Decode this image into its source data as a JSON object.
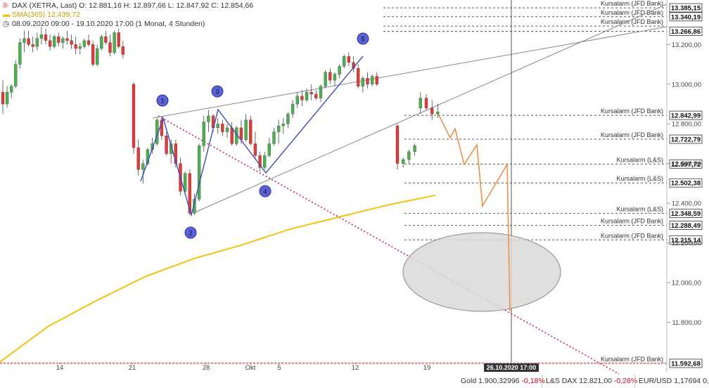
{
  "header": {
    "line1": "DAX (XETRA, Last)  O: 12.881,16  H: 12.897,66  L: 12.847,92  C: 12.854,66",
    "line2": "SMA(365)  12.439,72",
    "line3": "08.09.2020 09:00 - 19.10.2020 17:00   (1 Monat, 4 Stunden)",
    "sma_color": "#f4c20d"
  },
  "chart_data": {
    "type": "candlestick",
    "y_axis": {
      "ticks": [
        11800,
        12000,
        12200,
        12400,
        12600,
        12800,
        13000,
        13200
      ],
      "tick_labels": [
        "11.800,00",
        "12.000,00",
        "12.200,00",
        "12.400,00",
        "12.600,00",
        "12.800,00",
        "13.000,00",
        "13.200,00"
      ],
      "range": [
        11575,
        13400
      ]
    },
    "x_axis": {
      "tick_labels": [
        "14",
        "21",
        "28",
        "Okt",
        "5",
        "12",
        "19"
      ],
      "crosshair_label": "26.10.2020 17:00"
    },
    "candles": [
      [
        12960,
        13020,
        12850,
        12900
      ],
      [
        12900,
        12990,
        12880,
        12960
      ],
      [
        12960,
        13000,
        12930,
        12990
      ],
      [
        12990,
        13120,
        12980,
        13100
      ],
      [
        13100,
        13230,
        13080,
        13210
      ],
      [
        13210,
        13270,
        13160,
        13230
      ],
      [
        13230,
        13270,
        13190,
        13200
      ],
      [
        13200,
        13240,
        13160,
        13190
      ],
      [
        13190,
        13260,
        13170,
        13230
      ],
      [
        13230,
        13290,
        13200,
        13250
      ],
      [
        13250,
        13280,
        13200,
        13220
      ],
      [
        13220,
        13250,
        13170,
        13190
      ],
      [
        13190,
        13250,
        13180,
        13240
      ],
      [
        13240,
        13260,
        13190,
        13210
      ],
      [
        13210,
        13240,
        13180,
        13230
      ],
      [
        13230,
        13270,
        13200,
        13220
      ],
      [
        13220,
        13250,
        13180,
        13200
      ],
      [
        13200,
        13240,
        13150,
        13180
      ],
      [
        13180,
        13210,
        13150,
        13190
      ],
      [
        13190,
        13230,
        13180,
        13220
      ],
      [
        13220,
        13250,
        13190,
        13200
      ],
      [
        13200,
        13220,
        13090,
        13100
      ],
      [
        13100,
        13200,
        13090,
        13180
      ],
      [
        13180,
        13250,
        13170,
        13240
      ],
      [
        13240,
        13270,
        13200,
        13210
      ],
      [
        13210,
        13250,
        13140,
        13160
      ],
      [
        13160,
        13270,
        13150,
        13260
      ],
      [
        13260,
        13280,
        13180,
        13190
      ],
      [
        13190,
        13220,
        13130,
        13150
      ],
      [
        13000,
        13010,
        12650,
        12680
      ],
      [
        12680,
        12720,
        12540,
        12570
      ],
      [
        12570,
        12620,
        12500,
        12600
      ],
      [
        12600,
        12680,
        12590,
        12670
      ],
      [
        12670,
        12730,
        12650,
        12700
      ],
      [
        12700,
        12830,
        12690,
        12820
      ],
      [
        12820,
        12840,
        12720,
        12740
      ],
      [
        12740,
        12760,
        12640,
        12650
      ],
      [
        12650,
        12720,
        12600,
        12700
      ],
      [
        12700,
        12720,
        12580,
        12600
      ],
      [
        12600,
        12630,
        12440,
        12460
      ],
      [
        12460,
        12560,
        12450,
        12550
      ],
      [
        12550,
        12570,
        12340,
        12350
      ],
      [
        12350,
        12450,
        12340,
        12420
      ],
      [
        12420,
        12700,
        12410,
        12690
      ],
      [
        12690,
        12840,
        12660,
        12810
      ],
      [
        12810,
        12870,
        12760,
        12840
      ],
      [
        12840,
        12850,
        12760,
        12780
      ],
      [
        12780,
        12830,
        12750,
        12800
      ],
      [
        12800,
        12820,
        12740,
        12760
      ],
      [
        12760,
        12800,
        12730,
        12780
      ],
      [
        12780,
        12810,
        12690,
        12700
      ],
      [
        12700,
        12790,
        12690,
        12780
      ],
      [
        12780,
        12820,
        12700,
        12720
      ],
      [
        12720,
        12850,
        12710,
        12820
      ],
      [
        12820,
        12840,
        12690,
        12700
      ],
      [
        12700,
        12760,
        12620,
        12640
      ],
      [
        12640,
        12660,
        12560,
        12580
      ],
      [
        12580,
        12660,
        12570,
        12640
      ],
      [
        12640,
        12730,
        12630,
        12700
      ],
      [
        12700,
        12780,
        12690,
        12760
      ],
      [
        12760,
        12820,
        12700,
        12790
      ],
      [
        12790,
        12830,
        12750,
        12800
      ],
      [
        12800,
        12860,
        12780,
        12850
      ],
      [
        12850,
        12920,
        12830,
        12900
      ],
      [
        12900,
        12960,
        12880,
        12940
      ],
      [
        12940,
        12970,
        12890,
        12920
      ],
      [
        12920,
        12980,
        12910,
        12960
      ],
      [
        12960,
        13000,
        12920,
        12950
      ],
      [
        12950,
        12970,
        12920,
        12930
      ],
      [
        12930,
        13000,
        12910,
        12990
      ],
      [
        12990,
        13070,
        12980,
        13060
      ],
      [
        13060,
        13080,
        13000,
        13020
      ],
      [
        13020,
        13060,
        12990,
        13050
      ],
      [
        13050,
        13100,
        13030,
        13090
      ],
      [
        13090,
        13150,
        13080,
        13140
      ],
      [
        13140,
        13160,
        13090,
        13110
      ],
      [
        13110,
        13140,
        13060,
        13080
      ],
      [
        13080,
        13100,
        12980,
        12990
      ],
      [
        12990,
        13040,
        12960,
        13030
      ],
      [
        13030,
        13060,
        12980,
        13000
      ],
      [
        13000,
        13050,
        12990,
        13040
      ],
      [
        13040,
        13060,
        12990,
        13000
      ],
      [
        12790,
        12800,
        12570,
        12600
      ],
      [
        12600,
        12630,
        12580,
        12620
      ],
      [
        12620,
        12670,
        12600,
        12660
      ],
      [
        12660,
        12700,
        12640,
        12690
      ],
      [
        12880,
        12960,
        12850,
        12930
      ],
      [
        12930,
        12950,
        12870,
        12880
      ],
      [
        12880,
        12920,
        12820,
        12850
      ],
      [
        12850,
        12900,
        12830,
        12860
      ]
    ],
    "sma365": [
      [
        0,
        11600
      ],
      [
        40,
        11780
      ],
      [
        80,
        11910
      ],
      [
        120,
        12030
      ],
      [
        160,
        12120
      ],
      [
        200,
        12190
      ],
      [
        240,
        12270
      ],
      [
        280,
        12330
      ],
      [
        320,
        12390
      ],
      [
        360,
        12440
      ]
    ],
    "annotations": {
      "levels": [
        {
          "label": "Kursalarm (JFD Bank)",
          "value": 13385.15,
          "value_label": "13.385,15"
        },
        {
          "label": "Kursalarm (JFD Bank)",
          "value": 13340.19,
          "value_label": "13.340,19"
        },
        {
          "label": "Kursalarm (JFD Bank)",
          "value": 13293.0,
          "value_label": ""
        },
        {
          "label": "",
          "value": 13266.86,
          "value_label": "13.266,86"
        },
        {
          "label": "Kursalarm (JFD Bank)",
          "value": 12842.99,
          "value_label": "12.842,99"
        },
        {
          "label": "Kursalarm (JFD Bank)",
          "value": 12722.79,
          "value_label": "12.722,79"
        },
        {
          "label": "Kursalarm (L&S)",
          "value": 12597.72,
          "value_label": "12.597,72"
        },
        {
          "label": "Kursalarm (L&S)",
          "value": 12502.38,
          "value_label": "12.502,38"
        },
        {
          "label": "Kursalarm (L&S)",
          "value": 12348.59,
          "value_label": "12.348,59"
        },
        {
          "label": "Kursalarm (JFD Bank)",
          "value": 12288.49,
          "value_label": "12.288,49"
        },
        {
          "label": "Kursalarm (JFD Bank)",
          "value": 12215.14,
          "value_label": "12.215,14"
        },
        {
          "label": "Kursalarm (JFD Bank)",
          "value": 11592.68,
          "value_label": "11.592,68"
        }
      ],
      "wave_markers": [
        "1",
        "2",
        "3",
        "4",
        "5"
      ]
    }
  },
  "ticker": {
    "gold_label": "Gold",
    "gold_value": "1.900,32996",
    "gold_change": "-0,18%",
    "lsdax_label": "L&S DAX",
    "lsdax_value": "12.821,00",
    "lsdax_change": "-0,26%",
    "eurusd_label": "EUR/USD",
    "eurusd_value": "1,17694",
    "eurusd_change": "0,"
  },
  "colors": {
    "up": "#4caf50",
    "down": "#e53935",
    "wave": "#3b4cc0",
    "forecast": "#f08a3c",
    "sma": "#f4c20d",
    "dotted_support": "#d81b60"
  }
}
